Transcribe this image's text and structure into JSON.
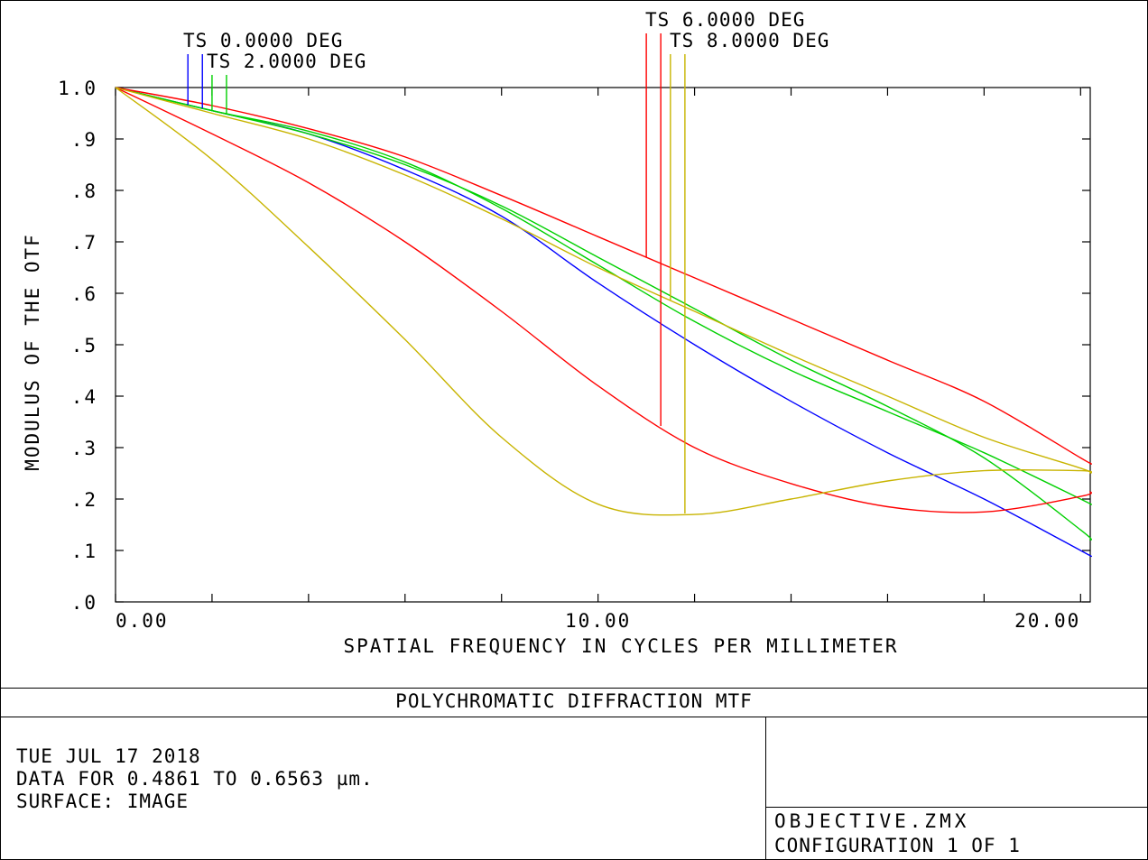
{
  "chart_data": {
    "type": "line",
    "title": "POLYCHROMATIC DIFFRACTION MTF",
    "xlabel": "SPATIAL FREQUENCY IN CYCLES PER MILLIMETER",
    "ylabel": "MODULUS OF THE OTF",
    "xlim": [
      0,
      20.2
    ],
    "ylim": [
      0,
      1.0
    ],
    "x_tick_labels": [
      {
        "value": 0,
        "label": "0.00"
      },
      {
        "value": 10,
        "label": "10.00"
      },
      {
        "value": 20,
        "label": "20.00"
      }
    ],
    "x_ticks": [
      0,
      2,
      4,
      6,
      8,
      10,
      12,
      14,
      16,
      18,
      20
    ],
    "y_ticks": [
      {
        "value": 0.0,
        "label": ".0"
      },
      {
        "value": 0.1,
        "label": ".1"
      },
      {
        "value": 0.2,
        "label": ".2"
      },
      {
        "value": 0.3,
        "label": ".3"
      },
      {
        "value": 0.4,
        "label": ".4"
      },
      {
        "value": 0.5,
        "label": ".5"
      },
      {
        "value": 0.6,
        "label": ".6"
      },
      {
        "value": 0.7,
        "label": ".7"
      },
      {
        "value": 0.8,
        "label": ".8"
      },
      {
        "value": 0.9,
        "label": ".9"
      },
      {
        "value": 1.0,
        "label": "1.0"
      }
    ],
    "grid": false,
    "series": [
      {
        "color": "#0000ff",
        "x": [
          0,
          2,
          4,
          6,
          8,
          10,
          12,
          14,
          16,
          18,
          20,
          20.2
        ],
        "y": [
          1.0,
          0.955,
          0.91,
          0.84,
          0.75,
          0.62,
          0.5,
          0.39,
          0.29,
          0.2,
          0.1,
          0.09
        ]
      },
      {
        "color": "#00d000",
        "x": [
          0,
          2,
          4,
          6,
          8,
          10,
          12,
          14,
          16,
          18,
          20,
          20.2
        ],
        "y": [
          1.0,
          0.955,
          0.915,
          0.855,
          0.765,
          0.655,
          0.545,
          0.45,
          0.37,
          0.29,
          0.2,
          0.19
        ]
      },
      {
        "color": "#00d000",
        "x": [
          0,
          2,
          4,
          6,
          8,
          10,
          12,
          14,
          16,
          18,
          20,
          20.2
        ],
        "y": [
          1.0,
          0.955,
          0.91,
          0.85,
          0.77,
          0.67,
          0.57,
          0.47,
          0.38,
          0.28,
          0.14,
          0.12
        ]
      },
      {
        "color": "#ff0000",
        "x": [
          0,
          2,
          4,
          6,
          8,
          10,
          12,
          14,
          16,
          18,
          20,
          20.2
        ],
        "y": [
          1.0,
          0.965,
          0.92,
          0.865,
          0.79,
          0.71,
          0.63,
          0.55,
          0.47,
          0.39,
          0.28,
          0.27
        ]
      },
      {
        "color": "#ff0000",
        "x": [
          0,
          2,
          4,
          6,
          8,
          10,
          12,
          14,
          16,
          18,
          20,
          20.2
        ],
        "y": [
          1.0,
          0.91,
          0.815,
          0.7,
          0.565,
          0.42,
          0.3,
          0.23,
          0.185,
          0.175,
          0.205,
          0.215
        ]
      },
      {
        "color": "#c8b400",
        "x": [
          0,
          2,
          4,
          6,
          8,
          10,
          12,
          14,
          16,
          18,
          20,
          20.2
        ],
        "y": [
          1.0,
          0.95,
          0.9,
          0.83,
          0.745,
          0.65,
          0.565,
          0.48,
          0.4,
          0.32,
          0.26,
          0.25
        ]
      },
      {
        "color": "#c8b400",
        "x": [
          0,
          2,
          4,
          6,
          8,
          10,
          12,
          14,
          16,
          18,
          20,
          20.2
        ],
        "y": [
          1.0,
          0.86,
          0.69,
          0.51,
          0.32,
          0.19,
          0.17,
          0.2,
          0.235,
          0.255,
          0.255,
          0.25
        ]
      }
    ],
    "legend": [
      {
        "label": "TS 0.0000 DEG",
        "frequencies": [
          1.5,
          1.8
        ],
        "colors": [
          "#0000ff",
          "#0000ff"
        ]
      },
      {
        "label": "TS 2.0000 DEG",
        "frequencies": [
          2.0,
          2.3
        ],
        "colors": [
          "#00d000",
          "#00d000"
        ]
      },
      {
        "label": "TS 6.0000 DEG",
        "frequencies": [
          11.0,
          11.3
        ],
        "colors": [
          "#ff0000",
          "#ff0000"
        ]
      },
      {
        "label": "TS 8.0000 DEG",
        "frequencies": [
          11.5,
          11.8
        ],
        "colors": [
          "#c8b400",
          "#c8b400"
        ]
      }
    ]
  },
  "footer": {
    "title": "POLYCHROMATIC DIFFRACTION MTF",
    "date": "TUE JUL 17 2018",
    "data_range": "DATA FOR 0.4861 TO 0.6563 µm.",
    "surface": "SURFACE: IMAGE",
    "filename": "OBJECTIVE.ZMX",
    "configuration": "CONFIGURATION 1 OF 1"
  }
}
